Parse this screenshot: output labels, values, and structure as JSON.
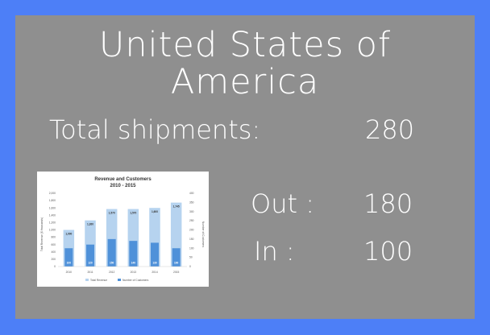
{
  "slide": {
    "title_line1": "United States of",
    "title_line2": "America",
    "total_label": "Total shipments:",
    "total_value": "280",
    "out_label": "Out :",
    "out_value": "180",
    "in_label": "In :",
    "in_value": "100"
  },
  "colors": {
    "background": "#4d7ff7",
    "panel": "#8f8f8f",
    "revenue_bar": "#b6d3ef",
    "customer_bar": "#4f91d9"
  },
  "chart_data": {
    "type": "bar",
    "title": "Revenue and Customers",
    "subtitle": "2010 - 2015",
    "categories": [
      "2010",
      "2011",
      "2012",
      "2013",
      "2014",
      "2015"
    ],
    "ylabel": "Total Revenue ($ thousands)",
    "y2label": "Number of Customers",
    "ylim": [
      0,
      2000
    ],
    "y2lim": [
      0,
      400
    ],
    "yticks": [
      "0",
      "200",
      "400",
      "600",
      "800",
      "1,000",
      "1,200",
      "1,400",
      "1,600",
      "1,800",
      "2,000"
    ],
    "y2ticks": [
      "0",
      "50",
      "100",
      "150",
      "200",
      "250",
      "300",
      "350",
      "400"
    ],
    "series": [
      {
        "name": "Total Revenue",
        "values": [
          1000,
          1260,
          1570,
          1570,
          1600,
          1745
        ],
        "labels": [
          "1,000",
          "1,260",
          "1,570",
          "1,570",
          "1,600",
          "1,745"
        ]
      },
      {
        "name": "Number of Customers",
        "values": [
          100,
          120,
          150,
          140,
          130,
          100
        ],
        "labels": [
          "100",
          "120",
          "150",
          "140",
          "130",
          "100"
        ]
      }
    ],
    "legend": "bottom",
    "grid": false
  }
}
